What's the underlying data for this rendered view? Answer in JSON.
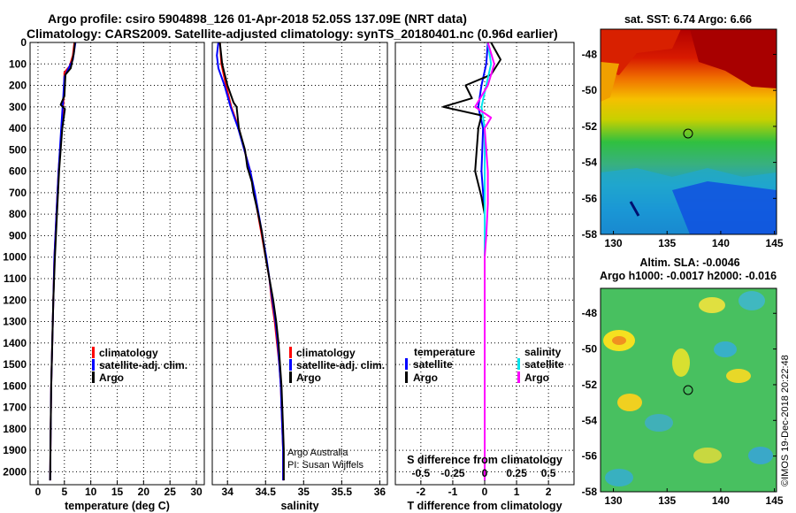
{
  "titles": {
    "line1": "Argo profile: csiro 5904898_126 01-Apr-2018 52.05S 137.09E (NRT data)",
    "line2": "Climatology: CARS2009. Satellite-adjusted climatology: synTS_20180401.nc (0.96d earlier)"
  },
  "credit": {
    "line1": "Argo Australia",
    "line2": "PI: Susan Wijffels",
    "stamp": "©IMOS 19-Dec-2018 20:22:48"
  },
  "colors": {
    "climatology": "#ff0000",
    "satellite": "#0000ff",
    "argo": "#000000",
    "sat_salinity": "#00e5ee",
    "argo_salinity": "#ff00ff"
  },
  "chart_data": [
    {
      "id": "temperature",
      "type": "line",
      "xlabel": "temperature (deg C)",
      "ylabel": "depth",
      "xlim": [
        -1.5,
        31.5
      ],
      "ylim": [
        2060,
        0
      ],
      "xticks": [
        0,
        5,
        10,
        15,
        20,
        25,
        30
      ],
      "yticks": [
        0,
        100,
        200,
        300,
        400,
        500,
        600,
        700,
        800,
        900,
        1000,
        1100,
        1200,
        1300,
        1400,
        1500,
        1600,
        1700,
        1800,
        1900,
        2000
      ],
      "legend": [
        "climatology",
        "satellite-adj. clim.",
        "Argo"
      ],
      "series": [
        {
          "name": "climatology",
          "color": "#ff0000",
          "points": [
            [
              6.9,
              0
            ],
            [
              6.6,
              60
            ],
            [
              6.0,
              110
            ],
            [
              5.0,
              140
            ],
            [
              4.9,
              250
            ],
            [
              4.5,
              400
            ],
            [
              3.9,
              600
            ],
            [
              3.5,
              800
            ],
            [
              3.1,
              1000
            ],
            [
              2.9,
              1200
            ],
            [
              2.7,
              1400
            ],
            [
              2.5,
              1600
            ],
            [
              2.4,
              1800
            ],
            [
              2.3,
              2040
            ]
          ]
        },
        {
          "name": "satellite-adj. clim.",
          "color": "#0000ff",
          "points": [
            [
              7.1,
              0
            ],
            [
              6.6,
              80
            ],
            [
              5.6,
              130
            ],
            [
              5.0,
              160
            ],
            [
              4.8,
              250
            ],
            [
              4.4,
              400
            ],
            [
              3.9,
              600
            ],
            [
              3.5,
              800
            ],
            [
              3.1,
              1000
            ],
            [
              2.9,
              1200
            ],
            [
              2.7,
              1400
            ],
            [
              2.5,
              1600
            ],
            [
              2.4,
              1800
            ],
            [
              2.3,
              2040
            ]
          ]
        },
        {
          "name": "Argo",
          "color": "#000000",
          "points": [
            [
              7.0,
              0
            ],
            [
              6.8,
              50
            ],
            [
              6.2,
              120
            ],
            [
              5.2,
              150
            ],
            [
              5.0,
              250
            ],
            [
              4.3,
              290
            ],
            [
              5.1,
              310
            ],
            [
              4.6,
              400
            ],
            [
              4.0,
              600
            ],
            [
              3.6,
              800
            ],
            [
              3.2,
              1000
            ],
            [
              2.9,
              1200
            ],
            [
              2.7,
              1400
            ],
            [
              2.5,
              1600
            ],
            [
              2.4,
              1800
            ],
            [
              2.3,
              2040
            ]
          ]
        }
      ]
    },
    {
      "id": "salinity",
      "type": "line",
      "xlabel": "salinity",
      "xlim": [
        33.8,
        36.1
      ],
      "ylim": [
        2060,
        0
      ],
      "xticks": [
        34,
        34.5,
        35,
        35.5,
        36
      ],
      "xticklabels": [
        "34",
        "34.5",
        "35",
        "35.5",
        "36"
      ],
      "legend": [
        "climatology",
        "satellite-adj. clim.",
        "Argo"
      ],
      "series": [
        {
          "name": "climatology",
          "color": "#ff0000",
          "points": [
            [
              33.9,
              0
            ],
            [
              33.92,
              100
            ],
            [
              33.98,
              200
            ],
            [
              34.05,
              300
            ],
            [
              34.15,
              400
            ],
            [
              34.22,
              500
            ],
            [
              34.3,
              600
            ],
            [
              34.35,
              700
            ],
            [
              34.4,
              800
            ],
            [
              34.45,
              900
            ],
            [
              34.5,
              1000
            ],
            [
              34.55,
              1100
            ],
            [
              34.58,
              1200
            ],
            [
              34.62,
              1300
            ],
            [
              34.65,
              1400
            ],
            [
              34.68,
              1500
            ],
            [
              34.7,
              1600
            ],
            [
              34.71,
              1700
            ],
            [
              34.72,
              1800
            ],
            [
              34.73,
              1900
            ],
            [
              34.73,
              2040
            ]
          ]
        },
        {
          "name": "satellite-adj. clim.",
          "color": "#0000ff",
          "points": [
            [
              33.88,
              0
            ],
            [
              33.86,
              60
            ],
            [
              33.88,
              120
            ],
            [
              33.96,
              200
            ],
            [
              34.04,
              300
            ],
            [
              34.14,
              400
            ],
            [
              34.22,
              500
            ],
            [
              34.3,
              600
            ],
            [
              34.36,
              700
            ],
            [
              34.41,
              800
            ],
            [
              34.46,
              900
            ],
            [
              34.51,
              1000
            ],
            [
              34.55,
              1100
            ],
            [
              34.59,
              1200
            ],
            [
              34.63,
              1300
            ],
            [
              34.66,
              1400
            ],
            [
              34.68,
              1500
            ],
            [
              34.7,
              1600
            ],
            [
              34.71,
              1700
            ],
            [
              34.72,
              1800
            ],
            [
              34.73,
              1900
            ],
            [
              34.73,
              2040
            ]
          ]
        },
        {
          "name": "Argo",
          "color": "#000000",
          "points": [
            [
              33.9,
              0
            ],
            [
              33.93,
              100
            ],
            [
              34.0,
              200
            ],
            [
              34.08,
              280
            ],
            [
              34.12,
              300
            ],
            [
              34.15,
              400
            ],
            [
              34.23,
              500
            ],
            [
              34.26,
              580
            ],
            [
              34.32,
              650
            ],
            [
              34.34,
              700
            ],
            [
              34.38,
              760
            ],
            [
              34.45,
              880
            ],
            [
              34.5,
              1000
            ],
            [
              34.55,
              1100
            ],
            [
              34.6,
              1200
            ],
            [
              34.64,
              1300
            ],
            [
              34.67,
              1400
            ],
            [
              34.69,
              1500
            ],
            [
              34.71,
              1600
            ],
            [
              34.72,
              1700
            ],
            [
              34.73,
              1800
            ],
            [
              34.74,
              1900
            ],
            [
              34.74,
              2040
            ]
          ]
        }
      ]
    },
    {
      "id": "difference",
      "type": "line",
      "xlabel": "T difference from climatology",
      "xlabel2": "S difference from climatology",
      "xlim": [
        -2.8,
        2.8
      ],
      "ylim": [
        2060,
        0
      ],
      "xticks": [
        -2,
        -1,
        0,
        1,
        2
      ],
      "xticks2": [
        -0.5,
        -0.25,
        0,
        0.25,
        0.5
      ],
      "xticklabels2": [
        "-0.5",
        "-0.25",
        "0",
        "0.25",
        "0.5"
      ],
      "legend_temperature_title": "temperature",
      "legend_salinity_title": "salinity",
      "legend": [
        "satellite",
        "Argo",
        "satellite",
        "Argo"
      ],
      "series": [
        {
          "name": "T satellite",
          "color": "#0000ff",
          "points": [
            [
              0.1,
              0
            ],
            [
              0.05,
              100
            ],
            [
              -0.1,
              200
            ],
            [
              -0.2,
              300
            ],
            [
              -0.05,
              400
            ],
            [
              -0.1,
              600
            ],
            [
              0,
              800
            ],
            [
              0,
              1000
            ],
            [
              0,
              1400
            ],
            [
              0,
              2040
            ]
          ]
        },
        {
          "name": "T Argo",
          "color": "#000000",
          "points": [
            [
              0.2,
              0
            ],
            [
              0.5,
              80
            ],
            [
              0.2,
              150
            ],
            [
              -0.6,
              200
            ],
            [
              -0.4,
              260
            ],
            [
              -1.3,
              300
            ],
            [
              -0.1,
              340
            ],
            [
              -0.2,
              400
            ],
            [
              -0.3,
              600
            ],
            [
              -0.1,
              720
            ],
            [
              0,
              800
            ],
            [
              0,
              1000
            ],
            [
              0,
              1400
            ],
            [
              0,
              2040
            ]
          ]
        },
        {
          "name": "S satellite",
          "color": "#00e5ee",
          "points": [
            [
              0.1,
              0
            ],
            [
              0.2,
              100
            ],
            [
              0.05,
              200
            ],
            [
              -0.1,
              300
            ],
            [
              0,
              400
            ],
            [
              0,
              600
            ],
            [
              0,
              800
            ],
            [
              0,
              1000
            ],
            [
              0,
              1400
            ],
            [
              0,
              2040
            ]
          ]
        },
        {
          "name": "S Argo",
          "color": "#ff00ff",
          "points": [
            [
              0.1,
              0
            ],
            [
              0.3,
              100
            ],
            [
              0.1,
              200
            ],
            [
              -0.3,
              300
            ],
            [
              0.2,
              350
            ],
            [
              0,
              400
            ],
            [
              0.1,
              600
            ],
            [
              0.1,
              750
            ],
            [
              0.05,
              900
            ],
            [
              0,
              1000
            ],
            [
              0,
              1400
            ],
            [
              0,
              2040
            ]
          ]
        }
      ]
    }
  ],
  "maps": {
    "sst": {
      "title": "sat. SST: 6.74 Argo: 6.66",
      "xticks": [
        "130",
        "135",
        "140",
        "145"
      ],
      "yticks": [
        "-48",
        "-50",
        "-52",
        "-54",
        "-56",
        "-58"
      ]
    },
    "sla": {
      "title1": "Altim. SLA: -0.0046",
      "title2": "Argo h1000: -0.0017 h2000: -0.016",
      "xticks": [
        "130",
        "135",
        "140",
        "145"
      ],
      "yticks": [
        "-48",
        "-50",
        "-52",
        "-54",
        "-56",
        "-58"
      ]
    }
  }
}
